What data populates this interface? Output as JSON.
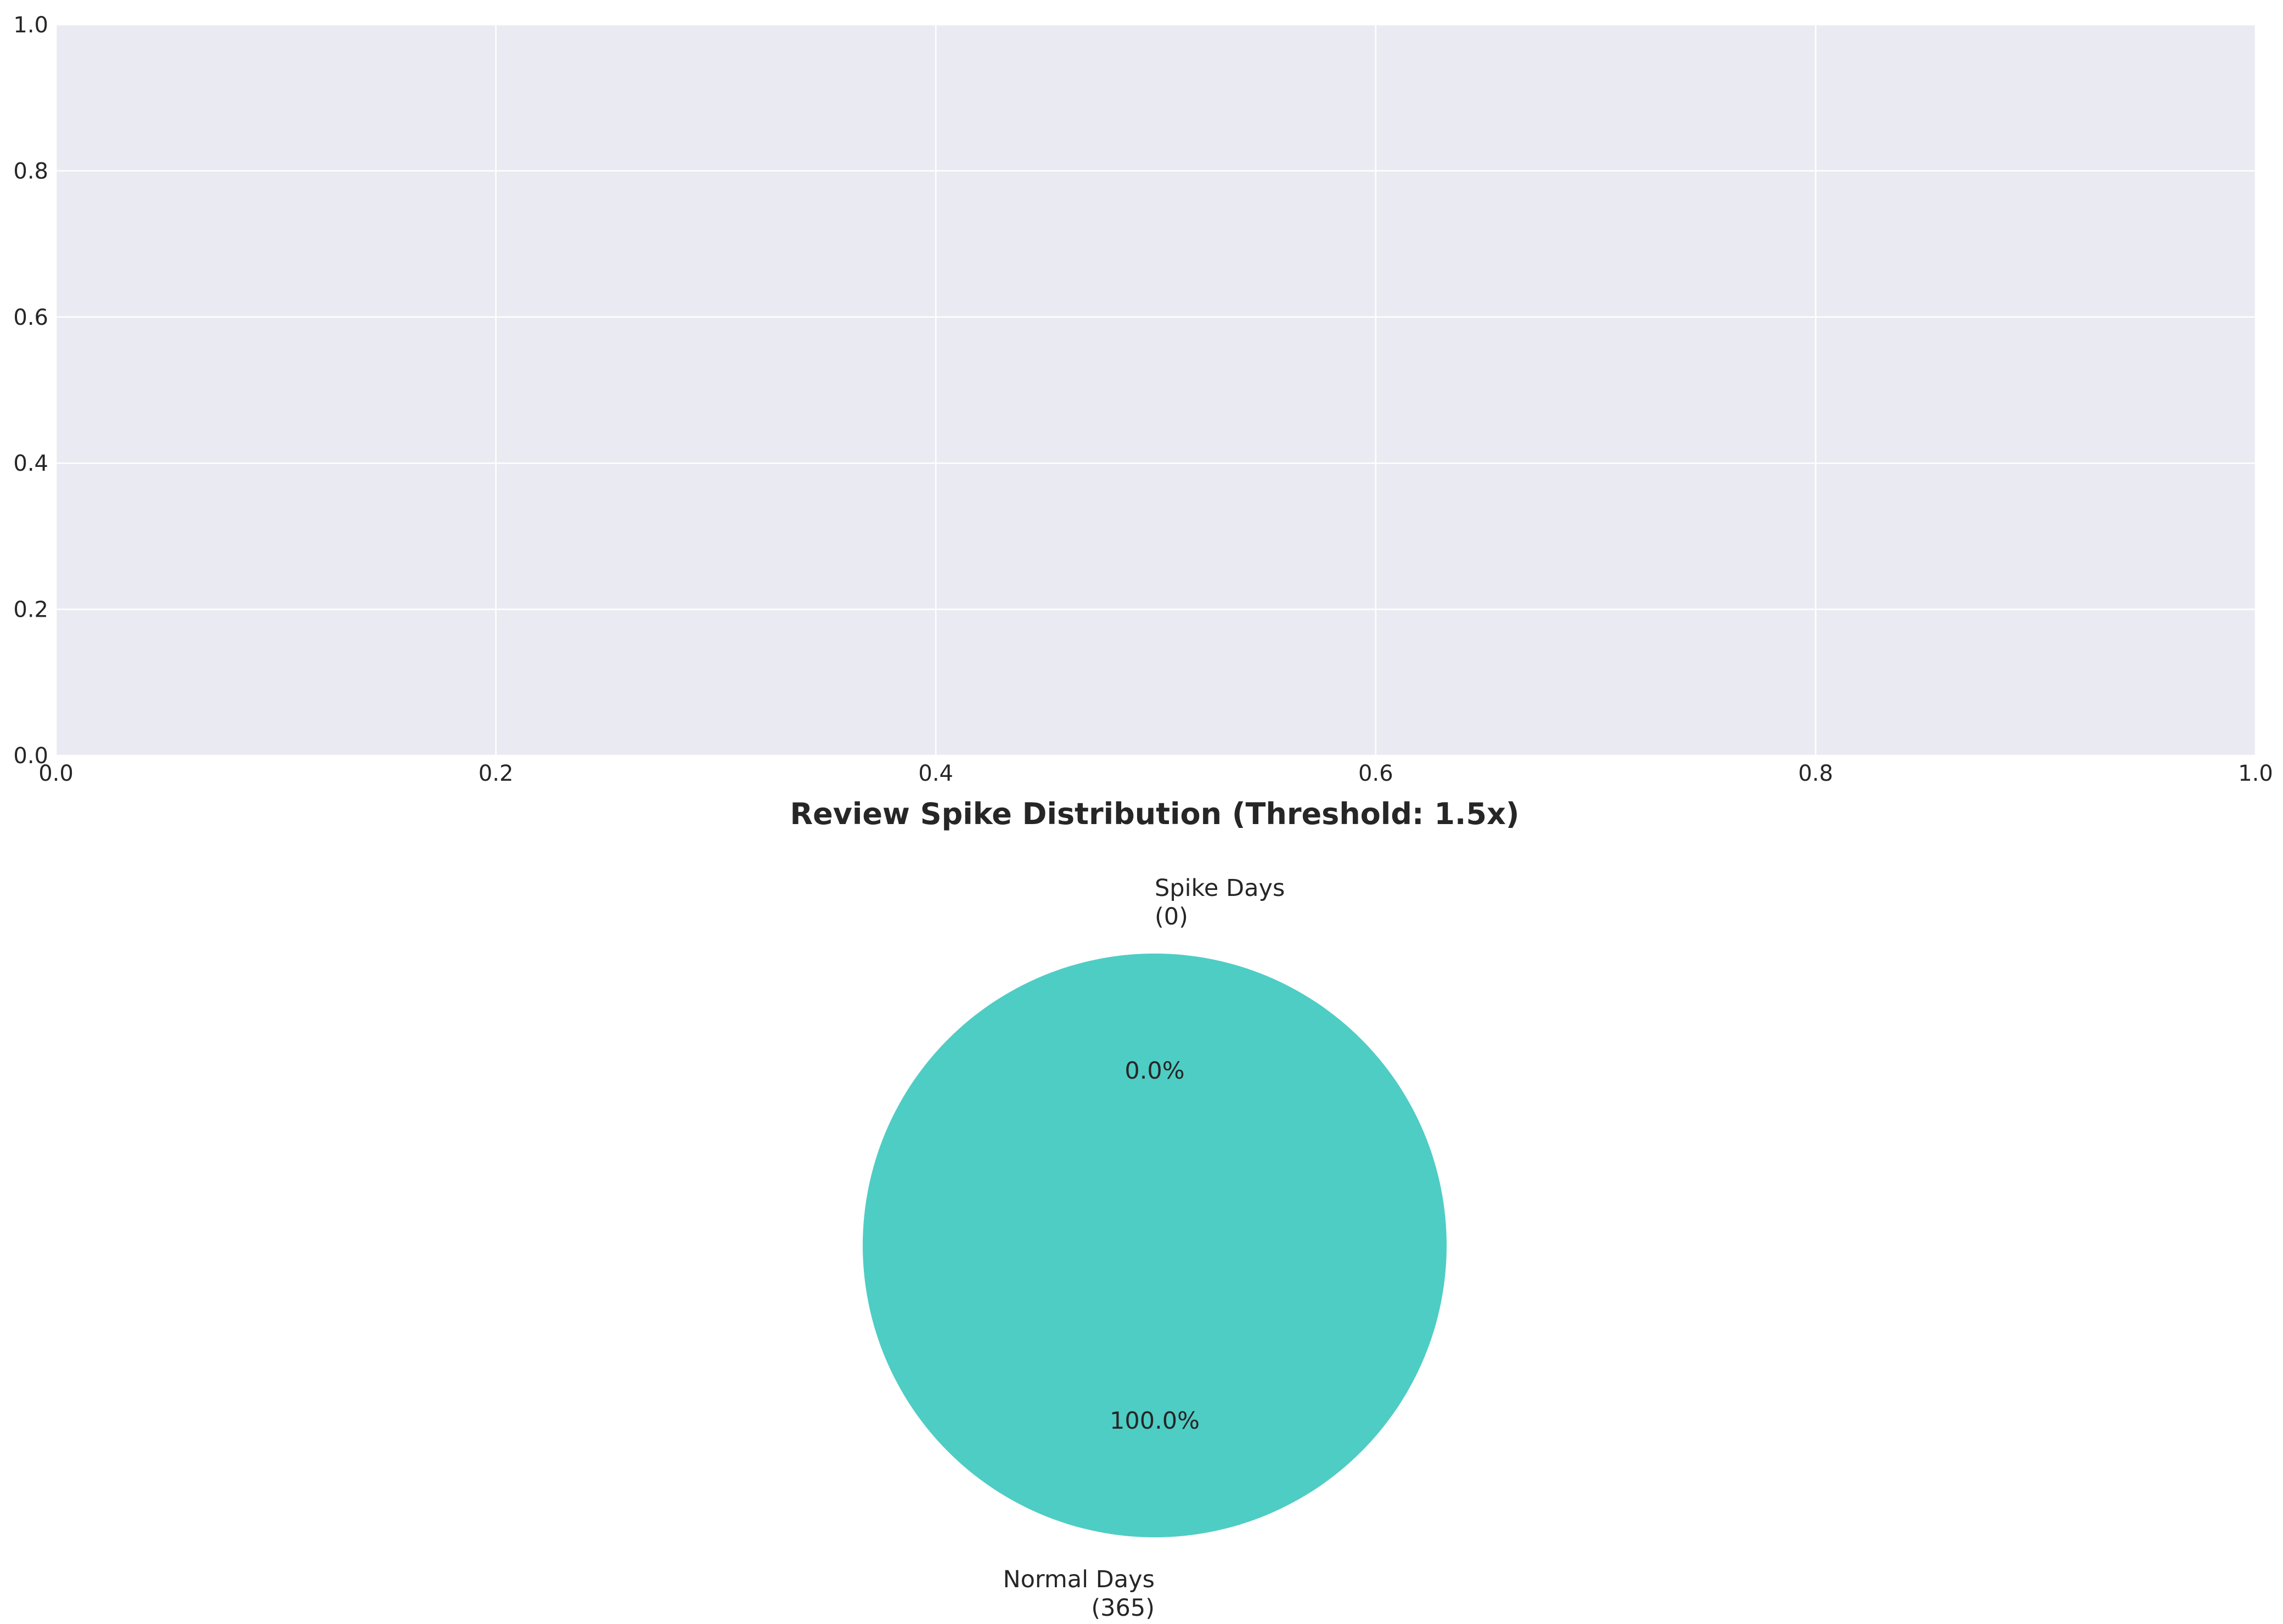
{
  "chart_data": [
    {
      "type": "line",
      "title": "",
      "xlabel": "",
      "ylabel": "",
      "xlim": [
        0.0,
        1.0
      ],
      "ylim": [
        0.0,
        1.0
      ],
      "x_ticks": [
        "0.0",
        "0.2",
        "0.4",
        "0.6",
        "0.8",
        "1.0"
      ],
      "y_ticks": [
        "0.0",
        "0.2",
        "0.4",
        "0.6",
        "0.8",
        "1.0"
      ],
      "series": [],
      "grid": true,
      "colors": {
        "axes_background": "#eaeaf2",
        "grid": "#ffffff"
      }
    },
    {
      "type": "pie",
      "title": "Review Spike Distribution (Threshold: 1.5x)",
      "slices": [
        {
          "label": [
            "Spike Days",
            "(0)"
          ],
          "value": 0,
          "pct_label": "0.0%",
          "color": "#ff6b6b"
        },
        {
          "label": [
            "Normal Days",
            "(365)"
          ],
          "value": 365,
          "pct_label": "100.0%",
          "color": "#4ecdc4"
        }
      ],
      "start_angle_deg": 90
    }
  ]
}
